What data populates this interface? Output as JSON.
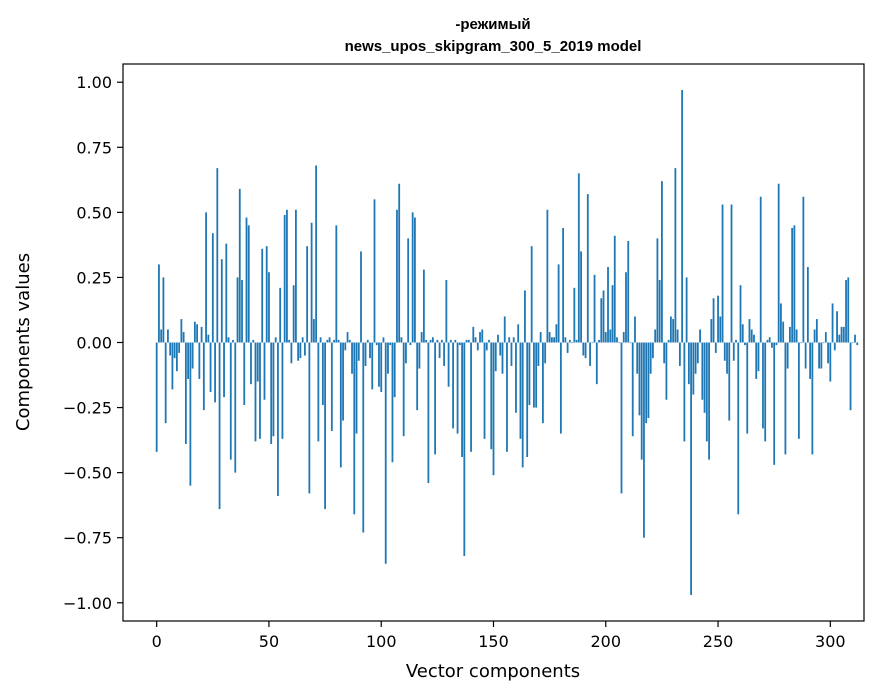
{
  "chart_data": {
    "type": "bar",
    "title_line1": "-режимый",
    "title_line2": "news_upos_skipgram_300_5_2019 model",
    "xlabel": "Vector components",
    "ylabel": "Components values",
    "xlim": [
      -15,
      315
    ],
    "ylim": [
      -1.07,
      1.07
    ],
    "xticks": [
      {
        "value": 0,
        "label": "0"
      },
      {
        "value": 50,
        "label": "50"
      },
      {
        "value": 100,
        "label": "100"
      },
      {
        "value": 150,
        "label": "150"
      },
      {
        "value": 200,
        "label": "200"
      },
      {
        "value": 250,
        "label": "250"
      },
      {
        "value": 300,
        "label": "300"
      }
    ],
    "yticks": [
      {
        "value": 1.0,
        "label": "1.00"
      },
      {
        "value": 0.75,
        "label": "0.75"
      },
      {
        "value": 0.5,
        "label": "0.50"
      },
      {
        "value": 0.25,
        "label": "0.25"
      },
      {
        "value": 0.0,
        "label": "0.00"
      },
      {
        "value": -0.25,
        "label": "−0.25"
      },
      {
        "value": -0.5,
        "label": "−0.50"
      },
      {
        "value": -0.75,
        "label": "−0.75"
      },
      {
        "value": -1.0,
        "label": "−1.00"
      }
    ],
    "bar_color": "#1f77b4",
    "values": [
      -0.42,
      0.3,
      0.05,
      0.25,
      -0.31,
      0.05,
      -0.05,
      -0.18,
      -0.06,
      -0.11,
      -0.04,
      0.09,
      0.04,
      -0.39,
      -0.14,
      -0.55,
      -0.1,
      0.08,
      0.07,
      -0.14,
      0.06,
      -0.26,
      0.5,
      0.03,
      -0.19,
      0.42,
      -0.23,
      0.67,
      -0.64,
      0.32,
      -0.21,
      0.38,
      0.02,
      -0.45,
      0.01,
      -0.5,
      0.25,
      0.59,
      0.24,
      -0.24,
      0.48,
      0.45,
      -0.16,
      0.01,
      -0.38,
      -0.15,
      -0.37,
      0.36,
      -0.22,
      0.37,
      0.27,
      -0.39,
      -0.36,
      0.02,
      -0.59,
      0.21,
      -0.37,
      0.49,
      0.51,
      0.01,
      -0.08,
      0.22,
      0.51,
      -0.07,
      -0.06,
      0.02,
      -0.05,
      0.37,
      -0.58,
      0.46,
      0.09,
      0.68,
      -0.38,
      0.02,
      -0.24,
      -0.64,
      0.01,
      0.02,
      -0.34,
      0.01,
      0.45,
      0.01,
      -0.48,
      -0.3,
      -0.03,
      0.04,
      0.01,
      -0.12,
      -0.66,
      -0.35,
      -0.07,
      0.35,
      -0.73,
      -0.09,
      0.01,
      -0.06,
      -0.18,
      0.55,
      -0.01,
      -0.17,
      -0.19,
      0.02,
      -0.85,
      -0.12,
      -0.01,
      -0.46,
      -0.21,
      0.51,
      0.61,
      0.02,
      -0.36,
      -0.08,
      0.4,
      -0.01,
      0.5,
      0.48,
      -0.26,
      -0.1,
      0.04,
      0.28,
      0.01,
      -0.54,
      0.01,
      0.02,
      -0.43,
      0.01,
      -0.06,
      0.01,
      -0.09,
      0.24,
      -0.17,
      0.01,
      -0.33,
      0.01,
      -0.35,
      -0.01,
      -0.44,
      -0.82,
      0.01,
      0.01,
      -0.42,
      0.06,
      0.02,
      -0.03,
      0.04,
      0.05,
      -0.37,
      -0.03,
      0.01,
      -0.41,
      -0.51,
      -0.11,
      0.03,
      -0.05,
      -0.12,
      0.1,
      -0.42,
      0.02,
      -0.09,
      0.02,
      -0.27,
      0.07,
      -0.37,
      -0.48,
      0.2,
      -0.44,
      -0.24,
      0.37,
      -0.25,
      -0.25,
      -0.09,
      0.04,
      -0.31,
      -0.08,
      0.51,
      0.04,
      0.02,
      0.02,
      0.07,
      0.3,
      -0.35,
      0.44,
      0.02,
      -0.04,
      0.01,
      0.0,
      0.21,
      0.01,
      0.65,
      0.35,
      -0.05,
      -0.06,
      0.57,
      -0.09,
      0.0,
      0.26,
      -0.16,
      0.01,
      0.17,
      0.2,
      0.04,
      0.29,
      0.05,
      0.22,
      0.41,
      0.02,
      0.0,
      -0.58,
      0.04,
      0.27,
      0.39,
      0.0,
      -0.36,
      0.1,
      -0.12,
      -0.28,
      -0.45,
      -0.75,
      -0.31,
      -0.29,
      -0.12,
      -0.06,
      0.05,
      0.4,
      0.24,
      0.62,
      -0.08,
      -0.22,
      0.01,
      0.1,
      0.09,
      0.67,
      0.05,
      -0.09,
      0.97,
      -0.38,
      0.25,
      -0.16,
      -0.97,
      -0.2,
      -0.12,
      -0.08,
      0.05,
      -0.22,
      -0.27,
      -0.38,
      -0.45,
      0.09,
      0.17,
      -0.04,
      0.18,
      0.1,
      0.53,
      -0.07,
      -0.12,
      -0.3,
      0.53,
      -0.07,
      0.01,
      -0.66,
      0.22,
      0.07,
      -0.01,
      -0.35,
      0.09,
      0.05,
      0.03,
      -0.14,
      -0.11,
      0.56,
      -0.33,
      -0.38,
      0.01,
      0.02,
      -0.02,
      -0.47,
      -0.01,
      0.61,
      0.15,
      0.08,
      -0.43,
      -0.1,
      0.06,
      0.44,
      0.45,
      0.05,
      -0.37,
      0.0,
      0.56,
      -0.1,
      0.29,
      -0.14,
      -0.43,
      0.05,
      0.09,
      -0.1,
      -0.1,
      0.0,
      0.04,
      -0.08,
      -0.15,
      0.15,
      -0.03,
      0.12,
      0.03,
      0.06,
      0.06,
      0.24,
      0.25,
      -0.26,
      0.0,
      0.03,
      -0.01
    ]
  }
}
